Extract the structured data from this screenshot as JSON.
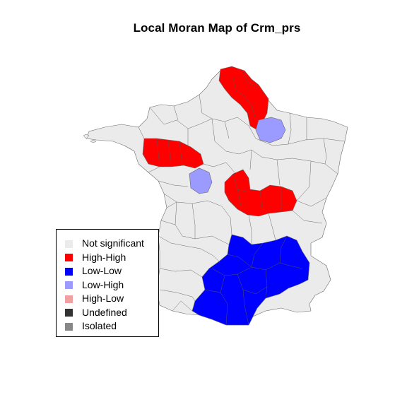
{
  "title": "Local Moran Map of Crm_prs",
  "colors": {
    "not_significant": "#ebebeb",
    "high_high": "#ff0000",
    "low_low": "#0000ff",
    "low_high": "#9a9aff",
    "high_low": "#f0a0a0",
    "undefined": "#333333",
    "isolated": "#888888",
    "border": "#6b6b6b"
  },
  "legend": {
    "items": [
      {
        "label": "Not significant",
        "color": "#ebebeb"
      },
      {
        "label": "High-High",
        "color": "#ff0000"
      },
      {
        "label": "Low-Low",
        "color": "#0000ff"
      },
      {
        "label": "Low-High",
        "color": "#9a9aff"
      },
      {
        "label": "High-Low",
        "color": "#f0a0a0"
      },
      {
        "label": "Undefined",
        "color": "#333333"
      },
      {
        "label": "Isolated",
        "color": "#888888"
      }
    ]
  }
}
